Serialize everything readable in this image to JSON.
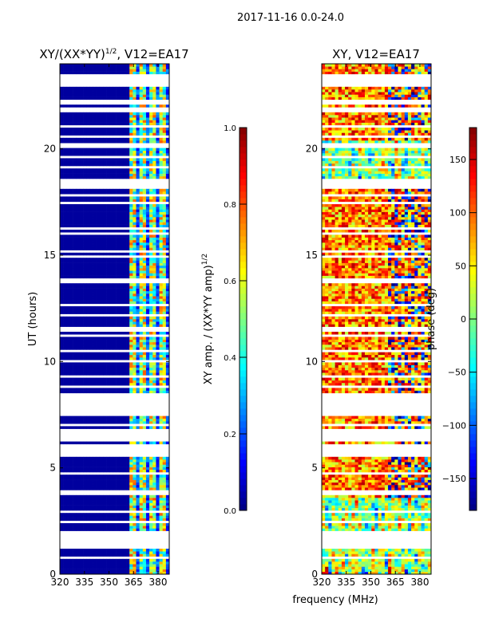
{
  "chart_data": [
    {
      "type": "heatmap",
      "suptitle": "2017-11-16 0.0-24.0",
      "title": "XY/(XX*YY)",
      "title_sup": "1/2",
      "title_suffix": ", V12=EA17",
      "xlabel": "frequency (MHz)",
      "ylabel": "UT (hours)",
      "xlim": [
        320,
        386
      ],
      "ylim": [
        0,
        24
      ],
      "xticks": [
        "320",
        "335",
        "350",
        "365",
        "380"
      ],
      "yticks": [
        "0",
        "5",
        "10",
        "15",
        "20"
      ],
      "colormap": "jet",
      "colorbar": {
        "label": "XY amp. / (XX*YY amp)",
        "label_sup": "1/2",
        "range": [
          0,
          1
        ],
        "ticks": [
          "0.0",
          "0.2",
          "0.4",
          "0.6",
          "0.8",
          "1.0"
        ]
      }
    },
    {
      "type": "heatmap",
      "title": "XY, V12=EA17",
      "xlabel": "frequency (MHz)",
      "xlim": [
        320,
        386
      ],
      "ylim": [
        0,
        24
      ],
      "xticks": [
        "320",
        "335",
        "350",
        "365",
        "380"
      ],
      "yticks": [
        "0",
        "5",
        "10",
        "15",
        "20"
      ],
      "colormap": "jet",
      "colorbar": {
        "label": "phase (deg)",
        "range": [
          -180,
          180
        ],
        "ticks": [
          "−150",
          "−100",
          "−50",
          "0",
          "50",
          "100",
          "150"
        ]
      }
    }
  ]
}
